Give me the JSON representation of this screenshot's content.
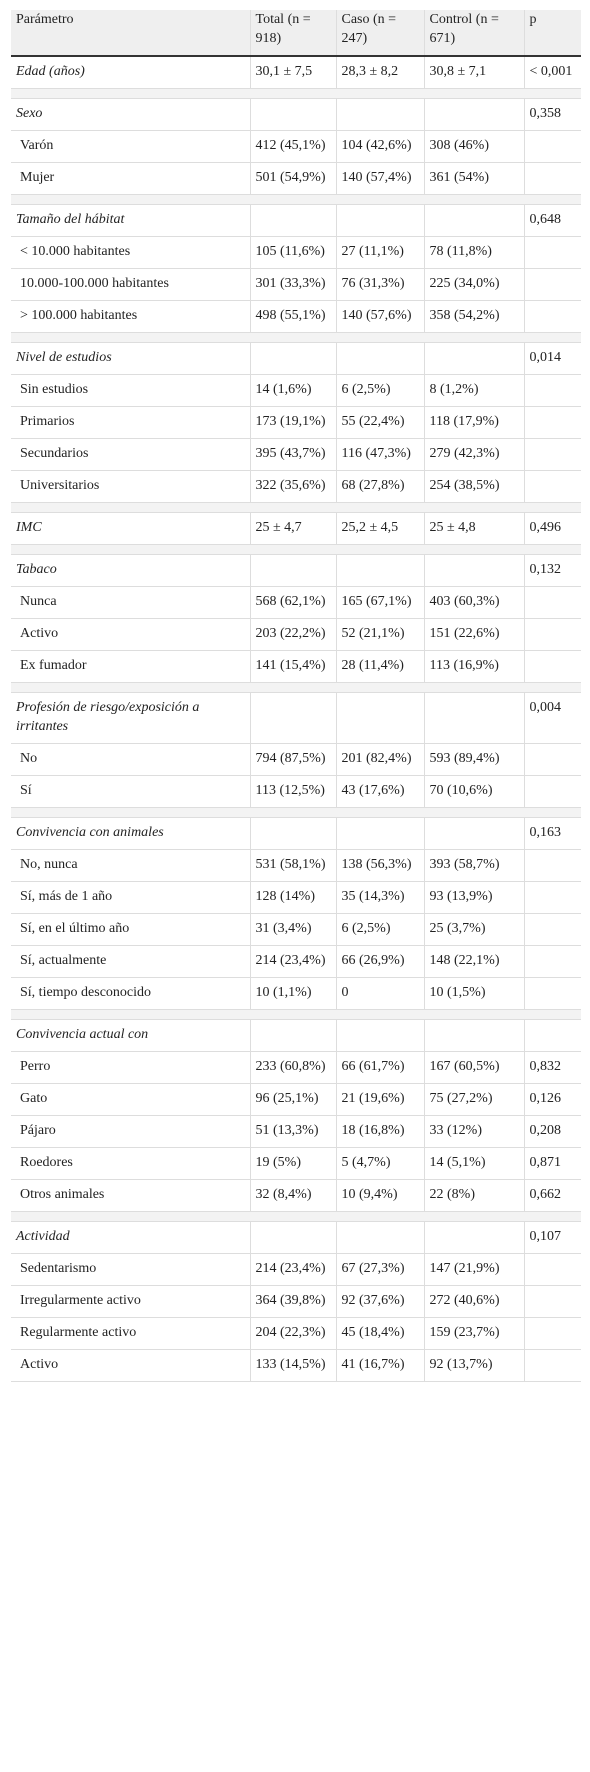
{
  "table": {
    "header": [
      "Parámetro",
      "Total (n = 918)",
      "Caso (n = 247)",
      "Control (n = 671)",
      "p"
    ],
    "groups": [
      {
        "head": [
          "Edad (años)",
          "30,1 ± 7,5",
          "28,3 ± 8,2",
          "30,8 ± 7,1",
          "< 0,001"
        ],
        "rows": []
      },
      {
        "head": [
          "Sexo",
          null,
          null,
          null,
          "0,358"
        ],
        "rows": [
          [
            "Varón",
            "412 (45,1%)",
            "104 (42,6%)",
            "308 (46%)",
            null
          ],
          [
            "Mujer",
            "501 (54,9%)",
            "140 (57,4%)",
            "361 (54%)",
            null
          ]
        ]
      },
      {
        "head": [
          "Tamaño del hábitat",
          null,
          null,
          null,
          "0,648"
        ],
        "rows": [
          [
            "< 10.000 habitantes",
            "105 (11,6%)",
            "27 (11,1%)",
            "78 (11,8%)",
            null
          ],
          [
            "10.000-100.000 habitantes",
            "301 (33,3%)",
            "76 (31,3%)",
            "225 (34,0%)",
            null
          ],
          [
            "> 100.000 habitantes",
            "498 (55,1%)",
            "140 (57,6%)",
            "358 (54,2%)",
            null
          ]
        ]
      },
      {
        "head": [
          "Nivel de estudios",
          null,
          null,
          null,
          "0,014"
        ],
        "rows": [
          [
            "Sin estudios",
            "14 (1,6%)",
            "6 (2,5%)",
            "8 (1,2%)",
            null
          ],
          [
            "Primarios",
            "173 (19,1%)",
            "55 (22,4%)",
            "118 (17,9%)",
            null
          ],
          [
            "Secundarios",
            "395 (43,7%)",
            "116 (47,3%)",
            "279 (42,3%)",
            null
          ],
          [
            "Universitarios",
            "322 (35,6%)",
            "68 (27,8%)",
            "254 (38,5%)",
            null
          ]
        ]
      },
      {
        "head": [
          "IMC",
          "25 ± 4,7",
          "25,2 ± 4,5",
          "25 ± 4,8",
          "0,496"
        ],
        "rows": []
      },
      {
        "head": [
          "Tabaco",
          null,
          null,
          null,
          "0,132"
        ],
        "rows": [
          [
            "Nunca",
            "568 (62,1%)",
            "165 (67,1%)",
            "403 (60,3%)",
            null
          ],
          [
            "Activo",
            "203 (22,2%)",
            "52 (21,1%)",
            "151 (22,6%)",
            null
          ],
          [
            "Ex fumador",
            "141 (15,4%)",
            "28 (11,4%)",
            "113 (16,9%)",
            null
          ]
        ]
      },
      {
        "head": [
          "Profesión de riesgo/exposición a irritantes",
          null,
          null,
          null,
          "0,004"
        ],
        "rows": [
          [
            "No",
            "794 (87,5%)",
            "201 (82,4%)",
            "593 (89,4%)",
            null
          ],
          [
            "Sí",
            "113 (12,5%)",
            "43 (17,6%)",
            "70 (10,6%)",
            null
          ]
        ]
      },
      {
        "head": [
          "Convivencia con animales",
          null,
          null,
          null,
          "0,163"
        ],
        "rows": [
          [
            "No, nunca",
            "531 (58,1%)",
            "138 (56,3%)",
            "393 (58,7%)",
            null
          ],
          [
            "Sí, más de 1 año",
            "128 (14%)",
            "35 (14,3%)",
            "93 (13,9%)",
            null
          ],
          [
            "Sí, en el último año",
            "31 (3,4%)",
            "6 (2,5%)",
            "25 (3,7%)",
            null
          ],
          [
            "Sí, actualmente",
            "214 (23,4%)",
            "66 (26,9%)",
            "148 (22,1%)",
            null
          ],
          [
            "Sí, tiempo desconocido",
            "10 (1,1%)",
            "0",
            "10 (1,5%)",
            null
          ]
        ]
      },
      {
        "head": [
          "Convivencia actual con",
          null,
          null,
          null,
          null
        ],
        "rows": [
          [
            "Perro",
            "233 (60,8%)",
            "66 (61,7%)",
            "167 (60,5%)",
            "0,832"
          ],
          [
            "Gato",
            "96 (25,1%)",
            "21 (19,6%)",
            "75 (27,2%)",
            "0,126"
          ],
          [
            "Pájaro",
            "51 (13,3%)",
            "18 (16,8%)",
            "33 (12%)",
            "0,208"
          ],
          [
            "Roedores",
            "19 (5%)",
            "5 (4,7%)",
            "14 (5,1%)",
            "0,871"
          ],
          [
            "Otros animales",
            "32 (8,4%)",
            "10 (9,4%)",
            "22 (8%)",
            "0,662"
          ]
        ]
      },
      {
        "head": [
          "Actividad",
          null,
          null,
          null,
          "0,107"
        ],
        "rows": [
          [
            "Sedentarismo",
            "214 (23,4%)",
            "67 (27,3%)",
            "147 (21,9%)",
            null
          ],
          [
            "Irregularmente activo",
            "364 (39,8%)",
            "92 (37,6%)",
            "272 (40,6%)",
            null
          ],
          [
            "Regularmente activo",
            "204 (22,3%)",
            "45 (18,4%)",
            "159 (23,7%)",
            null
          ],
          [
            "Activo",
            "133 (14,5%)",
            "41 (16,7%)",
            "92 (13,7%)",
            null
          ]
        ]
      }
    ]
  }
}
